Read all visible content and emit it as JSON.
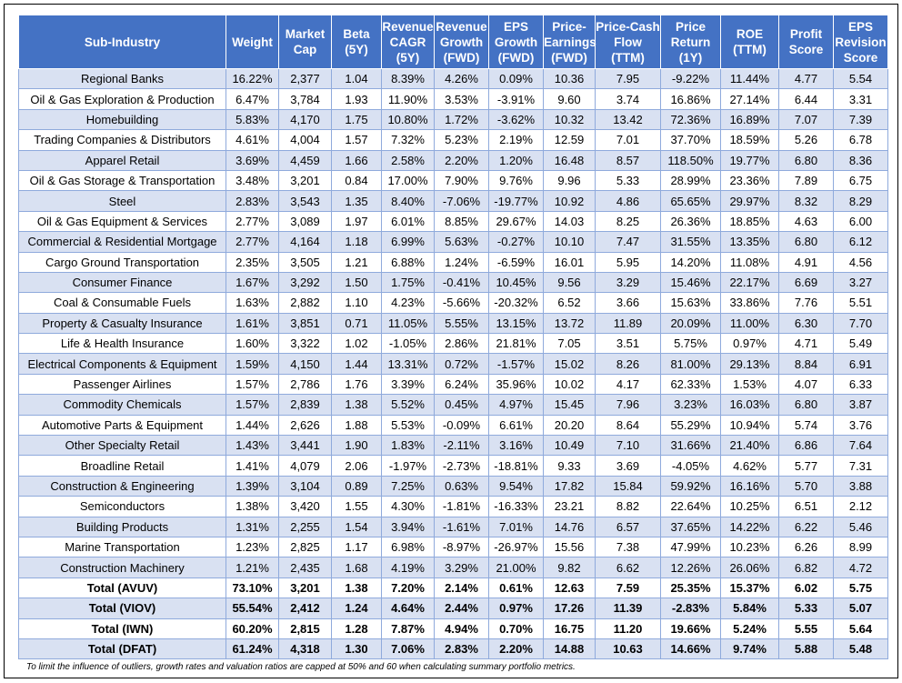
{
  "table": {
    "headers": [
      "Sub-Industry",
      "Weight",
      "Market Cap",
      "Beta (5Y)",
      "Revenue CAGR (5Y)",
      "Revenue Growth (FWD)",
      "EPS Growth (FWD)",
      "Price-Earnings (FWD)",
      "Price-Cash Flow (TTM)",
      "Price Return (1Y)",
      "ROE (TTM)",
      "Profit Score",
      "EPS Revision Score"
    ],
    "rows": [
      [
        "Regional Banks",
        "16.22%",
        "2,377",
        "1.04",
        "8.39%",
        "4.26%",
        "0.09%",
        "10.36",
        "7.95",
        "-9.22%",
        "11.44%",
        "4.77",
        "5.54"
      ],
      [
        "Oil & Gas Exploration & Production",
        "6.47%",
        "3,784",
        "1.93",
        "11.90%",
        "3.53%",
        "-3.91%",
        "9.60",
        "3.74",
        "16.86%",
        "27.14%",
        "6.44",
        "3.31"
      ],
      [
        "Homebuilding",
        "5.83%",
        "4,170",
        "1.75",
        "10.80%",
        "1.72%",
        "-3.62%",
        "10.32",
        "13.42",
        "72.36%",
        "16.89%",
        "7.07",
        "7.39"
      ],
      [
        "Trading Companies & Distributors",
        "4.61%",
        "4,004",
        "1.57",
        "7.32%",
        "5.23%",
        "2.19%",
        "12.59",
        "7.01",
        "37.70%",
        "18.59%",
        "5.26",
        "6.78"
      ],
      [
        "Apparel Retail",
        "3.69%",
        "4,459",
        "1.66",
        "2.58%",
        "2.20%",
        "1.20%",
        "16.48",
        "8.57",
        "118.50%",
        "19.77%",
        "6.80",
        "8.36"
      ],
      [
        "Oil & Gas Storage & Transportation",
        "3.48%",
        "3,201",
        "0.84",
        "17.00%",
        "7.90%",
        "9.76%",
        "9.96",
        "5.33",
        "28.99%",
        "23.36%",
        "7.89",
        "6.75"
      ],
      [
        "Steel",
        "2.83%",
        "3,543",
        "1.35",
        "8.40%",
        "-7.06%",
        "-19.77%",
        "10.92",
        "4.86",
        "65.65%",
        "29.97%",
        "8.32",
        "8.29"
      ],
      [
        "Oil & Gas Equipment & Services",
        "2.77%",
        "3,089",
        "1.97",
        "6.01%",
        "8.85%",
        "29.67%",
        "14.03",
        "8.25",
        "26.36%",
        "18.85%",
        "4.63",
        "6.00"
      ],
      [
        "Commercial & Residential Mortgage",
        "2.77%",
        "4,164",
        "1.18",
        "6.99%",
        "5.63%",
        "-0.27%",
        "10.10",
        "7.47",
        "31.55%",
        "13.35%",
        "6.80",
        "6.12"
      ],
      [
        "Cargo Ground Transportation",
        "2.35%",
        "3,505",
        "1.21",
        "6.88%",
        "1.24%",
        "-6.59%",
        "16.01",
        "5.95",
        "14.20%",
        "11.08%",
        "4.91",
        "4.56"
      ],
      [
        "Consumer Finance",
        "1.67%",
        "3,292",
        "1.50",
        "1.75%",
        "-0.41%",
        "10.45%",
        "9.56",
        "3.29",
        "15.46%",
        "22.17%",
        "6.69",
        "3.27"
      ],
      [
        "Coal & Consumable Fuels",
        "1.63%",
        "2,882",
        "1.10",
        "4.23%",
        "-5.66%",
        "-20.32%",
        "6.52",
        "3.66",
        "15.63%",
        "33.86%",
        "7.76",
        "5.51"
      ],
      [
        "Property & Casualty Insurance",
        "1.61%",
        "3,851",
        "0.71",
        "11.05%",
        "5.55%",
        "13.15%",
        "13.72",
        "11.89",
        "20.09%",
        "11.00%",
        "6.30",
        "7.70"
      ],
      [
        "Life & Health Insurance",
        "1.60%",
        "3,322",
        "1.02",
        "-1.05%",
        "2.86%",
        "21.81%",
        "7.05",
        "3.51",
        "5.75%",
        "0.97%",
        "4.71",
        "5.49"
      ],
      [
        "Electrical Components & Equipment",
        "1.59%",
        "4,150",
        "1.44",
        "13.31%",
        "0.72%",
        "-1.57%",
        "15.02",
        "8.26",
        "81.00%",
        "29.13%",
        "8.84",
        "6.91"
      ],
      [
        "Passenger Airlines",
        "1.57%",
        "2,786",
        "1.76",
        "3.39%",
        "6.24%",
        "35.96%",
        "10.02",
        "4.17",
        "62.33%",
        "1.53%",
        "4.07",
        "6.33"
      ],
      [
        "Commodity Chemicals",
        "1.57%",
        "2,839",
        "1.38",
        "5.52%",
        "0.45%",
        "4.97%",
        "15.45",
        "7.96",
        "3.23%",
        "16.03%",
        "6.80",
        "3.87"
      ],
      [
        "Automotive Parts & Equipment",
        "1.44%",
        "2,626",
        "1.88",
        "5.53%",
        "-0.09%",
        "6.61%",
        "20.20",
        "8.64",
        "55.29%",
        "10.94%",
        "5.74",
        "3.76"
      ],
      [
        "Other Specialty Retail",
        "1.43%",
        "3,441",
        "1.90",
        "1.83%",
        "-2.11%",
        "3.16%",
        "10.49",
        "7.10",
        "31.66%",
        "21.40%",
        "6.86",
        "7.64"
      ],
      [
        "Broadline Retail",
        "1.41%",
        "4,079",
        "2.06",
        "-1.97%",
        "-2.73%",
        "-18.81%",
        "9.33",
        "3.69",
        "-4.05%",
        "4.62%",
        "5.77",
        "7.31"
      ],
      [
        "Construction & Engineering",
        "1.39%",
        "3,104",
        "0.89",
        "7.25%",
        "0.63%",
        "9.54%",
        "17.82",
        "15.84",
        "59.92%",
        "16.16%",
        "5.70",
        "3.88"
      ],
      [
        "Semiconductors",
        "1.38%",
        "3,420",
        "1.55",
        "4.30%",
        "-1.81%",
        "-16.33%",
        "23.21",
        "8.82",
        "22.64%",
        "10.25%",
        "6.51",
        "2.12"
      ],
      [
        "Building Products",
        "1.31%",
        "2,255",
        "1.54",
        "3.94%",
        "-1.61%",
        "7.01%",
        "14.76",
        "6.57",
        "37.65%",
        "14.22%",
        "6.22",
        "5.46"
      ],
      [
        "Marine Transportation",
        "1.23%",
        "2,825",
        "1.17",
        "6.98%",
        "-8.97%",
        "-26.97%",
        "15.56",
        "7.38",
        "47.99%",
        "10.23%",
        "6.26",
        "8.99"
      ],
      [
        "Construction Machinery",
        "1.21%",
        "2,435",
        "1.68",
        "4.19%",
        "3.29%",
        "21.00%",
        "9.82",
        "6.62",
        "12.26%",
        "26.06%",
        "6.82",
        "4.72"
      ]
    ],
    "totals": [
      [
        "Total (AVUV)",
        "73.10%",
        "3,201",
        "1.38",
        "7.20%",
        "2.14%",
        "0.61%",
        "12.63",
        "7.59",
        "25.35%",
        "15.37%",
        "6.02",
        "5.75"
      ],
      [
        "Total (VIOV)",
        "55.54%",
        "2,412",
        "1.24",
        "4.64%",
        "2.44%",
        "0.97%",
        "17.26",
        "11.39",
        "-2.83%",
        "5.84%",
        "5.33",
        "5.07"
      ],
      [
        "Total (IWN)",
        "60.20%",
        "2,815",
        "1.28",
        "7.87%",
        "4.94%",
        "0.70%",
        "16.75",
        "11.20",
        "19.66%",
        "5.24%",
        "5.55",
        "5.64"
      ],
      [
        "Total (DFAT)",
        "61.24%",
        "4,318",
        "1.30",
        "7.06%",
        "2.83%",
        "2.20%",
        "14.88",
        "10.63",
        "14.66%",
        "9.74%",
        "5.88",
        "5.48"
      ]
    ]
  },
  "footnote": "To limit the influence of outliers, growth rates and valuation ratios are capped at 50% and 60 when calculating summary portfolio metrics.",
  "colors": {
    "header_bg": "#4472c4",
    "band_bg": "#d9e1f2",
    "grid": "#8faadc"
  }
}
